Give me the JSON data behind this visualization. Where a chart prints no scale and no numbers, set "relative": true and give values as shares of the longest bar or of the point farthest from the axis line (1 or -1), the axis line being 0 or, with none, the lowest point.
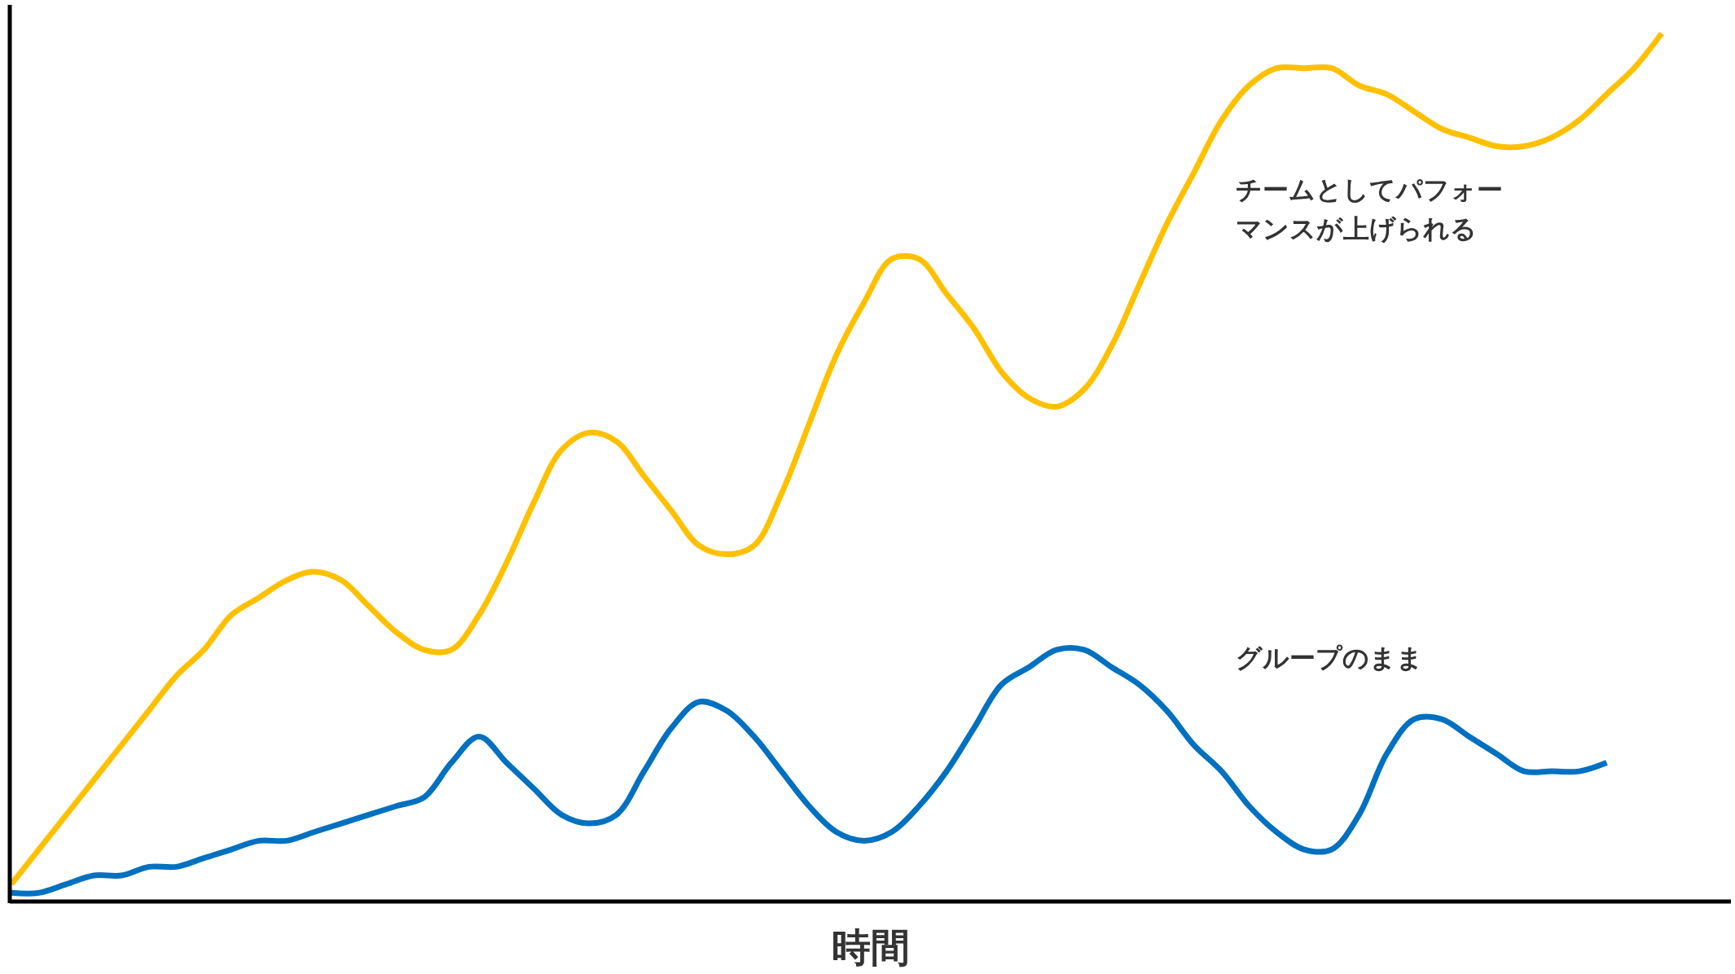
{
  "chart_data": {
    "type": "line",
    "relative": true,
    "xlabel": "時間",
    "categories": [
      null,
      null,
      null,
      null,
      null,
      null,
      null,
      null,
      null,
      null,
      null,
      null,
      null,
      null,
      null,
      null,
      null,
      null,
      null,
      null,
      null,
      null,
      null,
      null,
      null,
      null,
      null,
      null,
      null,
      null,
      null,
      null,
      null,
      null,
      null,
      null,
      null,
      null,
      null,
      null,
      null,
      null,
      null,
      null,
      null,
      null,
      null,
      null,
      null,
      null,
      null,
      null,
      null,
      null,
      null,
      null,
      null,
      null,
      null,
      null,
      null
    ],
    "marker": "none",
    "series": [
      {
        "name": "チームとしてパフォーマンスが上げられる",
        "color": "#ffc000",
        "values": [
          0.02,
          0.06,
          0.1,
          0.14,
          0.18,
          0.22,
          0.26,
          0.29,
          0.33,
          0.35,
          0.37,
          0.38,
          0.37,
          0.34,
          0.31,
          0.29,
          0.29,
          0.33,
          0.39,
          0.46,
          0.52,
          0.54,
          0.53,
          0.49,
          0.45,
          0.41,
          0.4,
          0.41,
          0.47,
          0.55,
          0.63,
          0.69,
          0.74,
          0.74,
          0.7,
          0.66,
          0.61,
          0.58,
          0.57,
          0.59,
          0.64,
          0.71,
          0.78,
          0.84,
          0.9,
          0.94,
          0.96,
          0.96,
          0.96,
          0.94,
          0.93,
          0.91,
          0.89,
          0.88,
          0.87,
          0.87,
          0.88,
          0.9,
          0.93,
          0.96,
          1
        ]
      },
      {
        "name": "グループのまま",
        "color": "#0070c0",
        "values": [
          0.01,
          0.01,
          0.02,
          0.03,
          0.03,
          0.04,
          0.04,
          0.05,
          0.06,
          0.07,
          0.07,
          0.08,
          0.09,
          0.1,
          0.11,
          0.12,
          0.16,
          0.19,
          0.16,
          0.13,
          0.1,
          0.09,
          0.1,
          0.15,
          0.2,
          0.23,
          0.22,
          0.19,
          0.15,
          0.11,
          0.08,
          0.07,
          0.08,
          0.11,
          0.15,
          0.2,
          0.25,
          0.27,
          0.29,
          0.29,
          0.27,
          0.25,
          0.22,
          0.18,
          0.15,
          0.11,
          0.08,
          0.06,
          0.06,
          0.1,
          0.17,
          0.21,
          0.21,
          0.19,
          0.17,
          0.15,
          0.15,
          0.15,
          0.16,
          null,
          null
        ]
      }
    ]
  }
}
